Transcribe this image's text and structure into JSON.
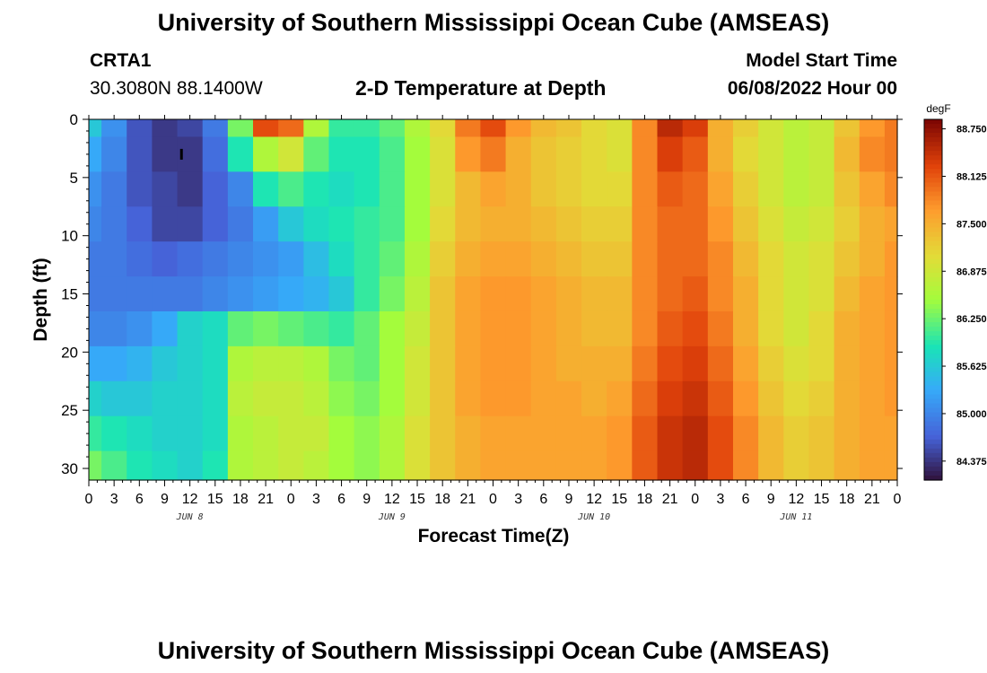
{
  "header": {
    "title": "University of Southern Mississippi Ocean Cube (AMSEAS)",
    "station_id": "CRTA1",
    "station_coords": "30.3080N  88.1400W",
    "model_start_label": "Model Start Time",
    "model_start_value": "06/08/2022 Hour 00"
  },
  "footer": {
    "title_repeat": "University of Southern Mississippi Ocean Cube (AMSEAS)"
  },
  "chart_data": {
    "type": "heatmap",
    "title": "2-D Temperature at Depth",
    "xlabel": "Forecast Time(Z)",
    "ylabel": "Depth (ft)",
    "x_tick_labels": [
      "0",
      "3",
      "6",
      "9",
      "12",
      "15",
      "18",
      "21",
      "0",
      "3",
      "6",
      "9",
      "12",
      "15",
      "18",
      "21",
      "0",
      "3",
      "6",
      "9",
      "12",
      "15",
      "18",
      "21",
      "0",
      "3",
      "6",
      "9",
      "12",
      "15",
      "18",
      "21",
      "0"
    ],
    "x_range_hours": [
      0,
      96
    ],
    "day_labels": [
      {
        "label": "JUN 8",
        "hour": 12
      },
      {
        "label": "JUN 9",
        "hour": 36
      },
      {
        "label": "JUN 10",
        "hour": 60
      },
      {
        "label": "JUN 11",
        "hour": 84
      }
    ],
    "y_ticks": [
      0,
      5,
      10,
      15,
      20,
      25,
      30
    ],
    "y_range_ft": [
      0,
      31
    ],
    "colorbar": {
      "unit": "degF",
      "min": 84.125,
      "max": 88.875,
      "tick_labels": [
        "88.750",
        "88.125",
        "87.500",
        "86.875",
        "86.250",
        "85.625",
        "85.000",
        "84.375"
      ],
      "tick_values": [
        88.75,
        88.125,
        87.5,
        86.875,
        86.25,
        85.625,
        85.0,
        84.375
      ]
    },
    "depths_ft": [
      0,
      3,
      6,
      9,
      12,
      15,
      18,
      21,
      24,
      27,
      30
    ],
    "time_hours": [
      0,
      3,
      6,
      9,
      12,
      15,
      18,
      21,
      24,
      27,
      30,
      33,
      36,
      39,
      42,
      45,
      48,
      51,
      54,
      57,
      60,
      63,
      66,
      69,
      72,
      75,
      78,
      81,
      84,
      87,
      90,
      93,
      96
    ],
    "temperature_degF": [
      [
        85.6,
        85.1,
        84.6,
        84.4,
        84.5,
        84.9,
        86.3,
        88.2,
        88.0,
        86.6,
        86.0,
        86.0,
        86.2,
        86.6,
        87.1,
        87.9,
        88.2,
        87.7,
        87.4,
        87.3,
        87.1,
        87.0,
        87.8,
        88.5,
        88.3,
        87.5,
        87.2,
        86.9,
        86.7,
        86.8,
        87.3,
        87.7,
        87.9
      ],
      [
        85.3,
        85.0,
        84.6,
        84.4,
        84.4,
        84.8,
        85.9,
        86.6,
        86.9,
        86.2,
        85.9,
        85.9,
        86.1,
        86.5,
        87.0,
        87.7,
        87.9,
        87.5,
        87.3,
        87.2,
        87.1,
        87.0,
        87.8,
        88.3,
        88.1,
        87.5,
        87.1,
        86.9,
        86.7,
        86.8,
        87.4,
        87.8,
        87.9
      ],
      [
        85.1,
        84.9,
        84.6,
        84.5,
        84.4,
        84.7,
        85.0,
        85.9,
        86.1,
        85.9,
        85.8,
        85.9,
        86.1,
        86.5,
        87.0,
        87.4,
        87.6,
        87.5,
        87.3,
        87.2,
        87.1,
        87.1,
        87.8,
        88.1,
        88.0,
        87.6,
        87.2,
        86.9,
        86.7,
        86.8,
        87.3,
        87.6,
        87.8
      ],
      [
        85.0,
        84.9,
        84.7,
        84.5,
        84.5,
        84.7,
        84.9,
        85.2,
        85.6,
        85.8,
        85.9,
        86.0,
        86.1,
        86.5,
        87.1,
        87.4,
        87.5,
        87.5,
        87.4,
        87.3,
        87.2,
        87.2,
        87.8,
        88.0,
        88.0,
        87.7,
        87.3,
        87.0,
        86.8,
        86.9,
        87.2,
        87.5,
        87.6
      ],
      [
        84.9,
        84.9,
        84.8,
        84.7,
        84.8,
        84.9,
        85.0,
        85.1,
        85.2,
        85.5,
        85.8,
        86.0,
        86.2,
        86.6,
        87.2,
        87.5,
        87.6,
        87.6,
        87.5,
        87.4,
        87.3,
        87.3,
        87.8,
        88.0,
        88.0,
        87.8,
        87.4,
        87.1,
        86.9,
        87.0,
        87.3,
        87.5,
        87.7
      ],
      [
        84.9,
        84.9,
        84.9,
        84.9,
        84.9,
        85.0,
        85.1,
        85.2,
        85.3,
        85.4,
        85.6,
        86.0,
        86.3,
        86.7,
        87.3,
        87.6,
        87.7,
        87.7,
        87.6,
        87.5,
        87.4,
        87.4,
        87.8,
        88.0,
        88.1,
        87.8,
        87.5,
        87.1,
        86.9,
        87.0,
        87.4,
        87.6,
        87.7
      ],
      [
        85.0,
        85.0,
        85.1,
        85.3,
        85.7,
        85.8,
        86.2,
        86.3,
        86.2,
        86.1,
        86.0,
        86.2,
        86.5,
        86.8,
        87.3,
        87.6,
        87.7,
        87.7,
        87.6,
        87.5,
        87.4,
        87.4,
        87.8,
        88.1,
        88.2,
        87.9,
        87.5,
        87.1,
        86.9,
        87.1,
        87.5,
        87.6,
        87.7
      ],
      [
        85.3,
        85.3,
        85.4,
        85.6,
        85.7,
        85.8,
        86.6,
        86.7,
        86.7,
        86.6,
        86.3,
        86.2,
        86.5,
        86.9,
        87.3,
        87.6,
        87.7,
        87.7,
        87.6,
        87.5,
        87.5,
        87.5,
        87.9,
        88.2,
        88.3,
        88.0,
        87.6,
        87.2,
        87.0,
        87.1,
        87.5,
        87.6,
        87.7
      ],
      [
        85.7,
        85.6,
        85.6,
        85.7,
        85.7,
        85.8,
        86.7,
        86.8,
        86.8,
        86.7,
        86.4,
        86.3,
        86.5,
        86.9,
        87.3,
        87.6,
        87.7,
        87.7,
        87.6,
        87.6,
        87.5,
        87.6,
        88.0,
        88.3,
        88.4,
        88.1,
        87.7,
        87.3,
        87.1,
        87.2,
        87.5,
        87.6,
        87.7
      ],
      [
        86.0,
        85.9,
        85.8,
        85.7,
        85.7,
        85.8,
        86.6,
        86.7,
        86.8,
        86.8,
        86.5,
        86.4,
        86.6,
        87.0,
        87.3,
        87.5,
        87.6,
        87.6,
        87.6,
        87.6,
        87.6,
        87.7,
        88.1,
        88.4,
        88.5,
        88.2,
        87.8,
        87.4,
        87.2,
        87.3,
        87.5,
        87.6,
        87.6
      ],
      [
        86.3,
        86.1,
        85.9,
        85.8,
        85.7,
        85.9,
        86.6,
        86.7,
        86.8,
        86.7,
        86.5,
        86.4,
        86.6,
        87.0,
        87.3,
        87.5,
        87.6,
        87.6,
        87.6,
        87.6,
        87.6,
        87.7,
        88.1,
        88.4,
        88.5,
        88.2,
        87.8,
        87.4,
        87.2,
        87.3,
        87.5,
        87.6,
        87.6
      ]
    ],
    "annotation_marker_hour": 11,
    "annotation_marker_depth_ft": 3
  }
}
